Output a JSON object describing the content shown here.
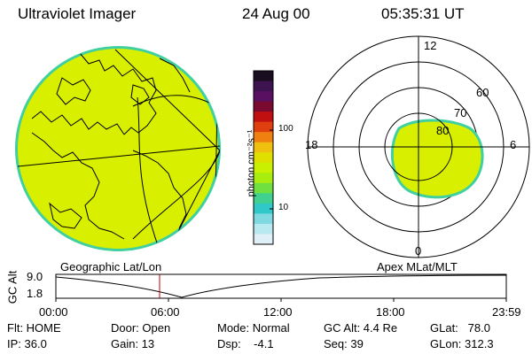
{
  "header": {
    "instrument": "Ultraviolet Imager",
    "date": "24 Aug 00",
    "time": "05:35:31 UT"
  },
  "colorbar": {
    "unit_label": "photon cm⁻²s⁻¹",
    "ticks": [
      "100",
      "10"
    ],
    "colors": [
      "#1a0d1f",
      "#3d1450",
      "#5a1060",
      "#7a0a30",
      "#c01010",
      "#e04010",
      "#f08010",
      "#f0c010",
      "#e0e000",
      "#c8f000",
      "#a8ec10",
      "#70e040",
      "#40d090",
      "#30c8c8",
      "#80d8e0",
      "#b8e8f0",
      "#e0f0f8"
    ]
  },
  "polar": {
    "mlt_labels": {
      "top": "12",
      "bottom": "0",
      "left": "18",
      "right": "6"
    },
    "lat_labels": [
      "60",
      "70",
      "80"
    ]
  },
  "timeline": {
    "left_title": "Geographic Lat/Lon",
    "right_title": "Apex MLat/MLT",
    "y_axis_label": "GC Alt",
    "y_ticks": [
      "9.0",
      "1.8"
    ],
    "x_ticks": [
      "00:00",
      "06:00",
      "12:00",
      "18:00",
      "23:59"
    ]
  },
  "status": {
    "flt": "Flt: HOME",
    "ip": "IP: 36.0",
    "door": "Door: Open",
    "gain": "Gain: 13",
    "mode": "Mode: Normal",
    "dsp": "Dsp:    -4.1",
    "gc_alt": "GC Alt: 4.4 Re",
    "seq": "Seq: 39",
    "glat": "GLat:   78.0",
    "glon": "GLon: 312.3"
  },
  "colors": {
    "aurora_fill": "#d8f000",
    "aurora_edge": "#40d0a0",
    "current_time_marker": "#c00000"
  }
}
